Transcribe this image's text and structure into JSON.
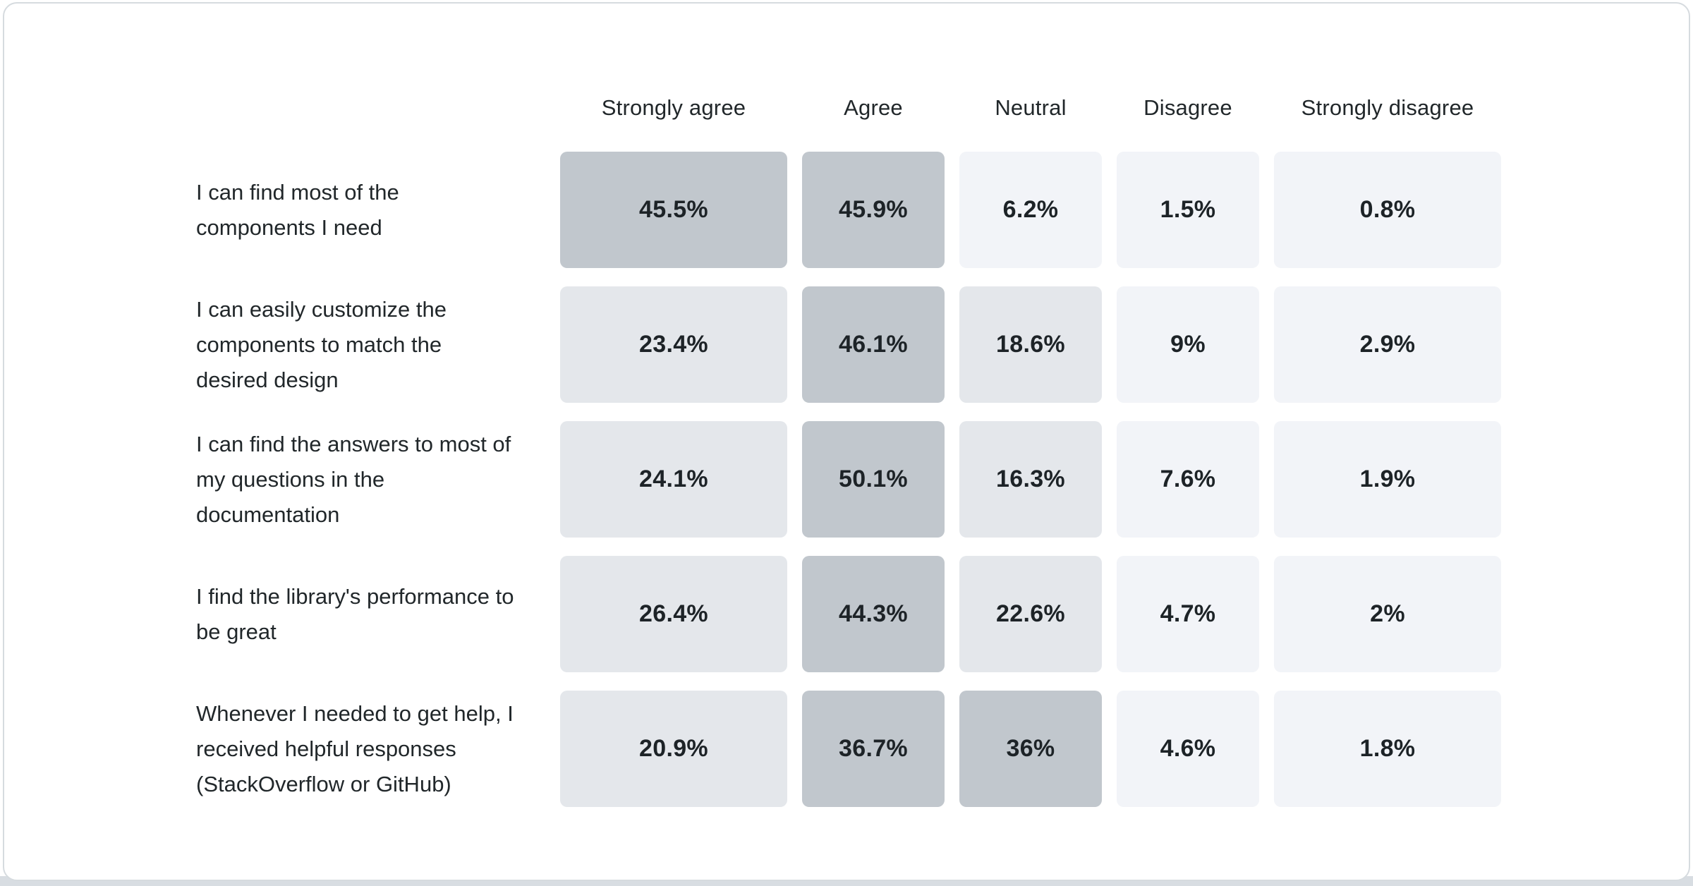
{
  "chart_data": {
    "type": "heatmap",
    "title": "",
    "legend": "none",
    "grid": "off",
    "columns": [
      "Strongly agree",
      "Agree",
      "Neutral",
      "Disagree",
      "Strongly disagree"
    ],
    "rows": [
      {
        "label": "I can find most of the components I need",
        "values": [
          45.5,
          45.9,
          6.2,
          1.5,
          0.8
        ],
        "display": [
          "45.5%",
          "45.9%",
          "6.2%",
          "1.5%",
          "0.8%"
        ]
      },
      {
        "label": "I can easily customize the components to match the desired design",
        "values": [
          23.4,
          46.1,
          18.6,
          9,
          2.9
        ],
        "display": [
          "23.4%",
          "46.1%",
          "18.6%",
          "9%",
          "2.9%"
        ]
      },
      {
        "label": "I can find the answers to most of my questions in the documentation",
        "values": [
          24.1,
          50.1,
          16.3,
          7.6,
          1.9
        ],
        "display": [
          "24.1%",
          "50.1%",
          "16.3%",
          "7.6%",
          "1.9%"
        ]
      },
      {
        "label": "I find the library's performance to be great",
        "values": [
          26.4,
          44.3,
          22.6,
          4.7,
          2
        ],
        "display": [
          "26.4%",
          "44.3%",
          "22.6%",
          "4.7%",
          "2%"
        ]
      },
      {
        "label": "Whenever I needed to get help, I received helpful responses (StackOverflow or GitHub)",
        "values": [
          20.9,
          36.7,
          36,
          4.6,
          1.8
        ],
        "display": [
          "20.9%",
          "36.7%",
          "36%",
          "4.6%",
          "1.8%"
        ]
      }
    ],
    "value_range": [
      0,
      50.1
    ],
    "heatmap_scale": {
      "buckets": [
        {
          "min": 30,
          "color": "#c1c7cd"
        },
        {
          "min": 10,
          "color": "#e4e7eb"
        },
        {
          "min": 0,
          "color": "#f2f4f8"
        }
      ]
    }
  },
  "colors": {
    "card_background": "#ffffff",
    "card_border": "#d6dbdf",
    "page_bottom_strip": "#d8dde2",
    "text": "#21272a"
  }
}
